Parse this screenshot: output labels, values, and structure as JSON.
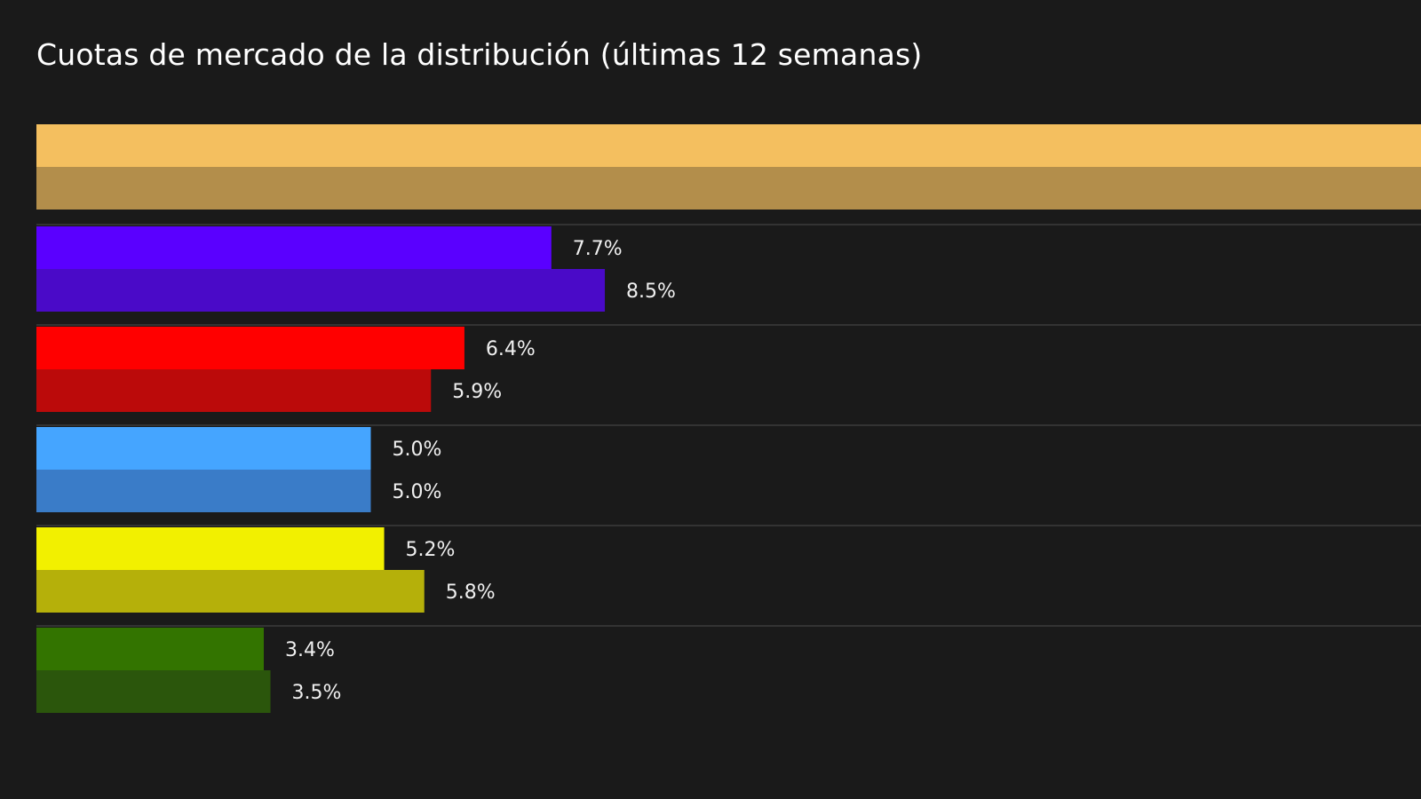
{
  "chart_data": {
    "type": "bar",
    "orientation": "horizontal",
    "title": "Cuotas de mercado de la distribución (últimas 12 semanas)",
    "xlabel": "",
    "ylabel": "",
    "grid": false,
    "unit": "%",
    "groups": [
      {
        "colors": [
          "#f4bf5f",
          "#b38e4b"
        ],
        "values": [
          null,
          null
        ],
        "labels": [
          "",
          ""
        ]
      },
      {
        "colors": [
          "#5a00ff",
          "#4a0ac8"
        ],
        "values": [
          7.7,
          8.5
        ],
        "labels": [
          "7.7%",
          "8.5%"
        ]
      },
      {
        "colors": [
          "#ff0000",
          "#bb0a0a"
        ],
        "values": [
          6.4,
          5.9
        ],
        "labels": [
          "6.4%",
          "5.9%"
        ]
      },
      {
        "colors": [
          "#45a5ff",
          "#3a7cc8"
        ],
        "values": [
          5.0,
          5.0
        ],
        "labels": [
          "5.0%",
          "5.0%"
        ]
      },
      {
        "colors": [
          "#f2f000",
          "#b5b00a"
        ],
        "values": [
          5.2,
          5.8
        ],
        "labels": [
          "5.2%",
          "5.8%"
        ]
      },
      {
        "colors": [
          "#337400",
          "#2b560c"
        ],
        "values": [
          3.4,
          3.5
        ],
        "labels": [
          "3.4%",
          "3.5%"
        ]
      }
    ]
  }
}
